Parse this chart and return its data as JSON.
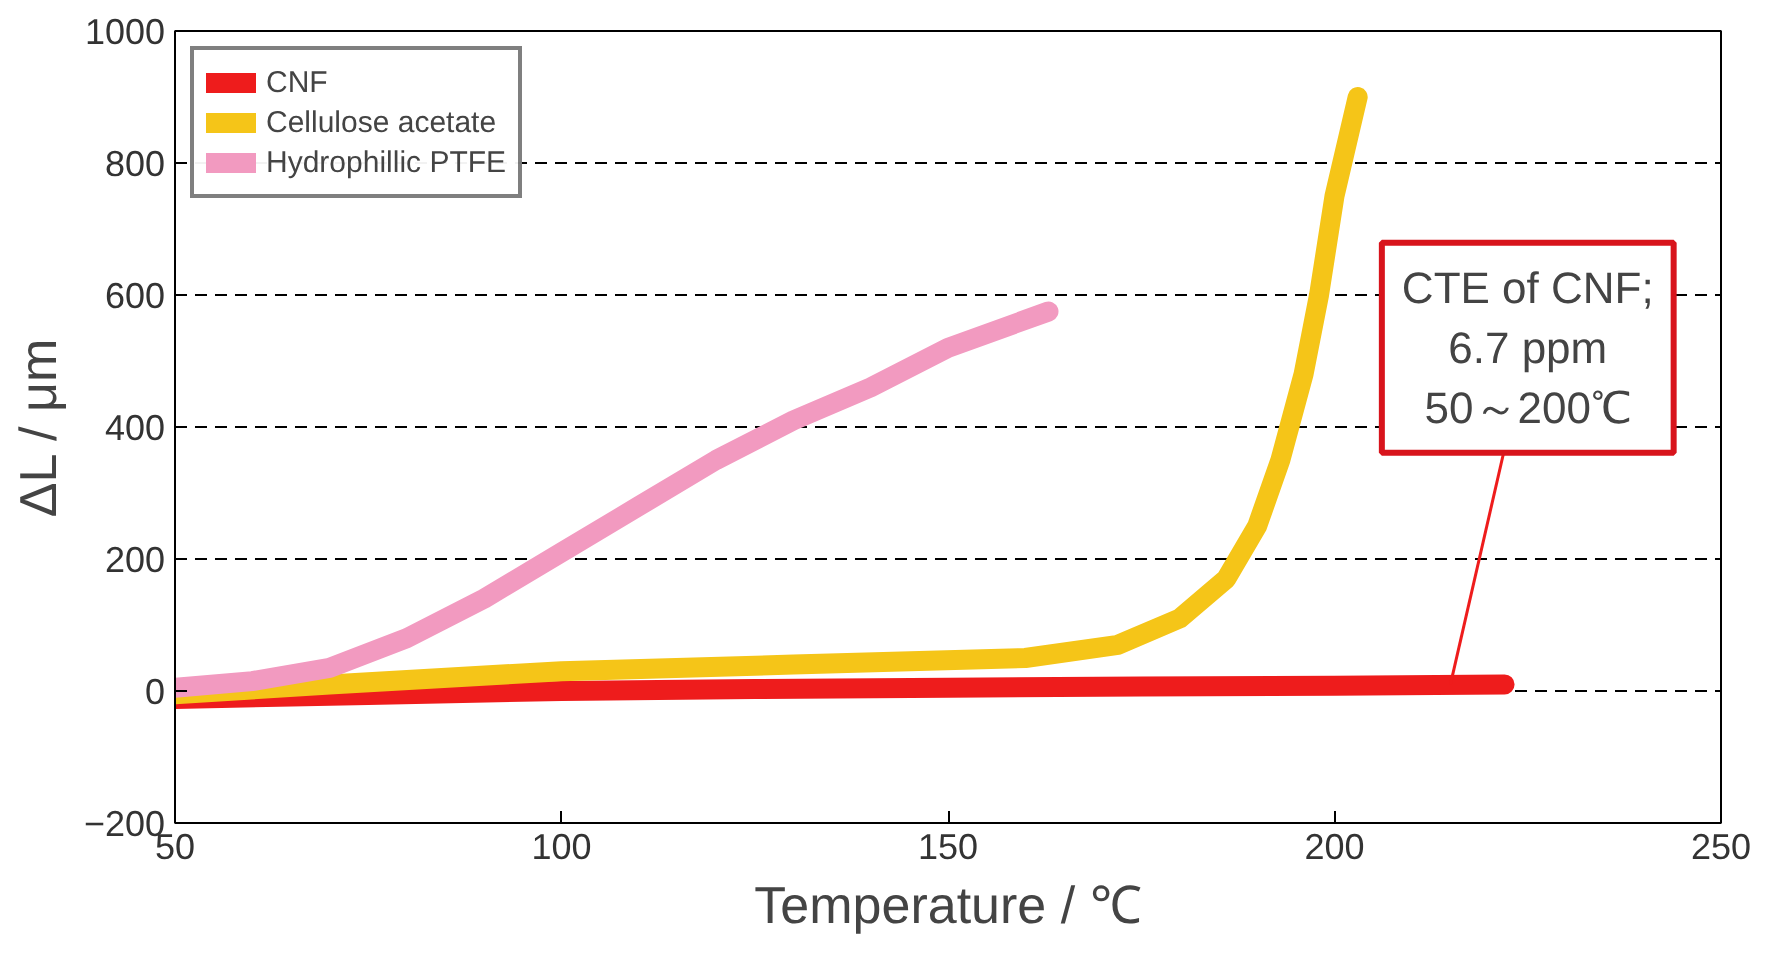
{
  "chart_data": {
    "type": "line",
    "xlabel": "Temperature / ℃",
    "ylabel": "ΔL / μm",
    "xlim": [
      50,
      250
    ],
    "xticks": [
      50,
      100,
      150,
      200,
      250
    ],
    "ylim": [
      -200,
      1000
    ],
    "yticks": [
      -200,
      0,
      200,
      400,
      600,
      800,
      1000
    ],
    "grid": "y",
    "legend": "top left",
    "line_style": "solid",
    "series": [
      {
        "name": "CNF",
        "color": "#ee1c1c",
        "x": [
          50,
          75,
          100,
          125,
          150,
          175,
          200,
          222
        ],
        "values": [
          -12,
          -6,
          0,
          3,
          5,
          7,
          8,
          10
        ]
      },
      {
        "name": "Cellulose acetate",
        "color": "#f5c518",
        "x": [
          50,
          70,
          100,
          130,
          160,
          172,
          180,
          186,
          190,
          193,
          196,
          198,
          200,
          202,
          203
        ],
        "values": [
          -5,
          10,
          30,
          40,
          50,
          70,
          110,
          170,
          250,
          350,
          480,
          600,
          750,
          850,
          900
        ]
      },
      {
        "name": "Hydrophillic PTFE",
        "color": "#f29ac0",
        "x": [
          50,
          60,
          70,
          80,
          90,
          100,
          110,
          120,
          130,
          140,
          150,
          163
        ],
        "values": [
          5,
          15,
          35,
          80,
          140,
          210,
          280,
          350,
          410,
          460,
          520,
          575
        ]
      }
    ],
    "annotations": [
      {
        "text": "CTE of CNF;\n6.7 ppm\n50～200℃",
        "x": 215,
        "y": 10
      }
    ]
  }
}
